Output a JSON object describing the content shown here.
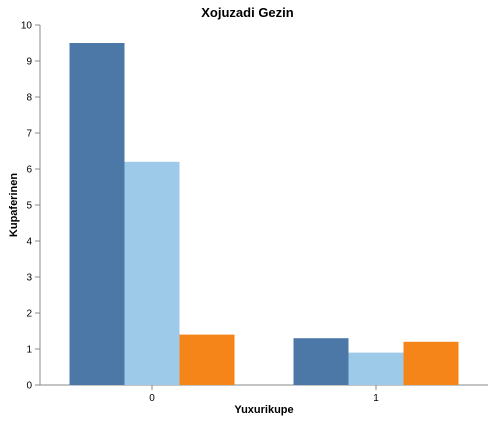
{
  "chart_data": {
    "type": "bar",
    "title": "Xojuzadi Gezin",
    "xlabel": "Yuxurikupe",
    "ylabel": "Kupaferinen",
    "categories": [
      "0",
      "1"
    ],
    "ylim": [
      0,
      10
    ],
    "yticks": [
      0,
      1,
      2,
      3,
      4,
      5,
      6,
      7,
      8,
      9,
      10
    ],
    "grid": false,
    "legend": "none",
    "series": [
      {
        "values": [
          9.5,
          1.3
        ],
        "color": "#4c78a8"
      },
      {
        "values": [
          6.2,
          0.9
        ],
        "color": "#9ecae9"
      },
      {
        "values": [
          1.4,
          1.2
        ],
        "color": "#f58518"
      }
    ]
  }
}
